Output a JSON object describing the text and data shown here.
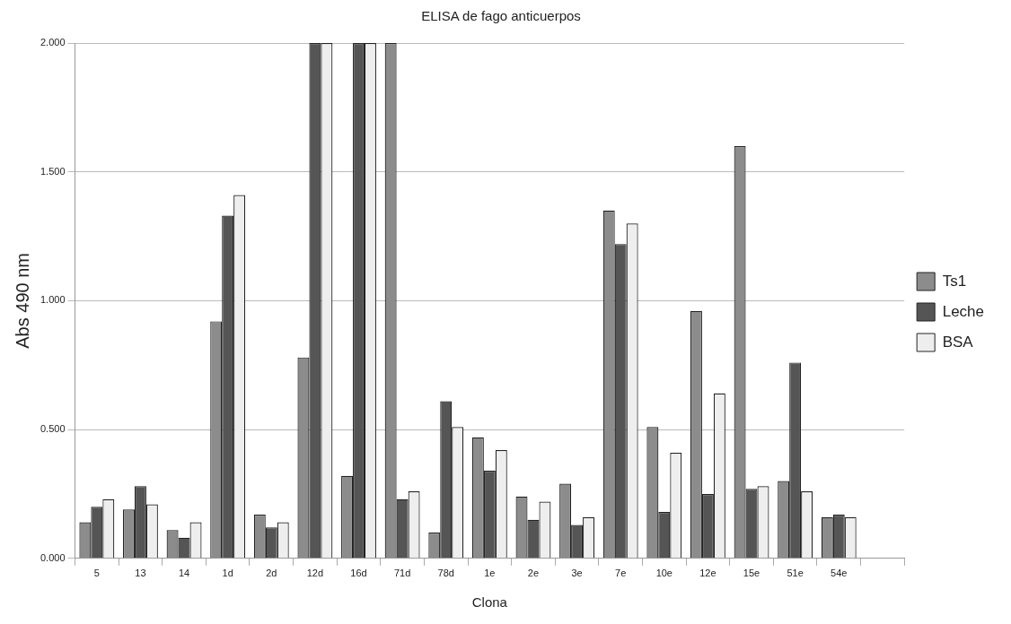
{
  "chart_data": {
    "type": "bar",
    "title": "ELISA de fago anticuerpos",
    "xlabel": "Clona",
    "ylabel": "Abs 490 nm",
    "categories": [
      "5",
      "13",
      "14",
      "1d",
      "2d",
      "12d",
      "16d",
      "71d",
      "78d",
      "1e",
      "2e",
      "3e",
      "7e",
      "10e",
      "12e",
      "15e",
      "51e",
      "54e",
      null
    ],
    "series": [
      {
        "name": "Ts1",
        "color": "#8c8c8c",
        "values": [
          0.14,
          0.19,
          0.11,
          0.92,
          0.17,
          0.78,
          0.32,
          2.0,
          0.1,
          0.47,
          0.24,
          0.29,
          1.35,
          0.51,
          0.96,
          1.6,
          0.3,
          0.16,
          null
        ]
      },
      {
        "name": "Leche",
        "color": "#555555",
        "values": [
          0.2,
          0.28,
          0.08,
          1.33,
          0.12,
          2.0,
          2.0,
          0.23,
          0.61,
          0.34,
          0.15,
          0.13,
          1.22,
          0.18,
          0.25,
          0.27,
          0.76,
          0.17,
          null
        ]
      },
      {
        "name": "BSA",
        "color": "#eeeeee",
        "values": [
          0.23,
          0.21,
          0.14,
          1.41,
          0.14,
          2.0,
          2.0,
          0.26,
          0.51,
          0.42,
          0.22,
          0.16,
          1.3,
          0.41,
          0.64,
          0.28,
          0.26,
          0.16,
          null
        ]
      }
    ],
    "ylim": [
      0,
      2
    ],
    "yticks": [
      {
        "value": 0,
        "label": "0.000"
      },
      {
        "value": 0.5,
        "label": "0.500"
      },
      {
        "value": 1,
        "label": "1.000"
      },
      {
        "value": 1.5,
        "label": "1.500"
      },
      {
        "value": 2,
        "label": "2.000"
      }
    ],
    "grid": "y",
    "legend": "right"
  }
}
